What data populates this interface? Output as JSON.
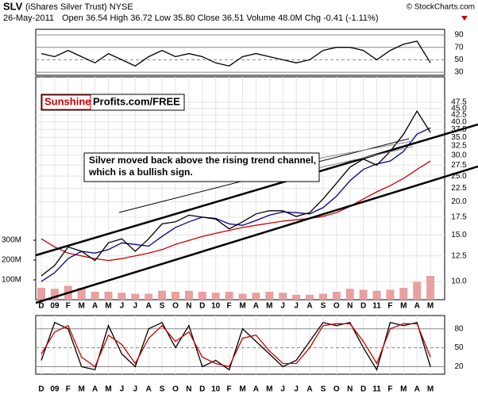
{
  "header": {
    "symbol": "SLV",
    "name": "(iShares Silver Trust) NYSE",
    "date": "26-May-2011",
    "quote": "Open 36.54  High 36.72  Low 35.80  Close 36.51  Volume 48.0M  Chg -0.41 (-1.11%)",
    "source": "© StockCharts.com"
  },
  "logo": {
    "red": "Sunshine",
    "black": "Profits.com/FREE"
  },
  "chart_data": [
    {
      "type": "line",
      "ylim": [
        25,
        99
      ],
      "yticks": [
        30,
        50,
        70,
        90
      ],
      "grid": true,
      "series": [
        {
          "color": "#000000",
          "values": [
            60,
            55,
            65,
            55,
            45,
            60,
            50,
            40,
            55,
            65,
            55,
            60,
            55,
            45,
            40,
            55,
            60,
            55,
            50,
            45,
            50,
            65,
            70,
            70,
            65,
            50,
            65,
            75,
            80,
            45
          ]
        }
      ]
    },
    {
      "type": "line",
      "log_scale": true,
      "ylim": [
        8.54,
        59.2
      ],
      "grid": true,
      "yticks": [
        {
          "value": 10,
          "label": "10.0"
        },
        {
          "value": 12.5,
          "label": "12.5"
        },
        {
          "value": 15,
          "label": "15.0"
        },
        {
          "value": 17.5,
          "label": "17.5"
        },
        {
          "value": 20,
          "label": "20.0"
        },
        {
          "value": 22.5,
          "label": "22.5"
        },
        {
          "value": 25,
          "label": "25.0"
        },
        {
          "value": 27.5,
          "label": "27.5"
        },
        {
          "value": 30,
          "label": "30.0"
        },
        {
          "value": 32.5,
          "label": "32.5"
        },
        {
          "value": 35,
          "label": "35.0"
        },
        {
          "value": 37.5,
          "label": "37.5"
        },
        {
          "value": 40,
          "label": "40.0"
        },
        {
          "value": 42.5,
          "label": "42.5"
        },
        {
          "value": 45,
          "label": "45.0"
        },
        {
          "value": 47.5,
          "label": "47.5"
        }
      ],
      "y2lim": [
        0,
        1124
      ],
      "y2ticks": [
        {
          "value": 100,
          "label": "100M"
        },
        {
          "value": 200,
          "label": "200M"
        },
        {
          "value": 300,
          "label": "300M"
        }
      ],
      "categories": [
        "D",
        "09",
        "F",
        "M",
        "A",
        "M",
        "J",
        "J",
        "A",
        "S",
        "O",
        "N",
        "D",
        "10",
        "F",
        "M",
        "A",
        "M",
        "J",
        "J",
        "A",
        "S",
        "O",
        "N",
        "D",
        "11",
        "F",
        "M",
        "A",
        "M"
      ],
      "annotation": [
        "Silver moved back above the rising trend channel,",
        "which is a bullish sign."
      ],
      "series": [
        {
          "type": "bar",
          "axis": "y2",
          "color": "#e8a0a0",
          "values": [
            60,
            55,
            70,
            60,
            40,
            40,
            35,
            30,
            30,
            45,
            40,
            45,
            40,
            35,
            40,
            30,
            35,
            40,
            35,
            25,
            25,
            30,
            40,
            55,
            50,
            45,
            50,
            60,
            90,
            120
          ]
        },
        {
          "color": "#cc0000",
          "values": [
            14.5,
            13.5,
            12.8,
            12.5,
            12.2,
            12,
            12.2,
            12.5,
            12.8,
            13.2,
            13.8,
            14.3,
            14.8,
            15.2,
            15.6,
            16,
            16.3,
            16.6,
            16.9,
            17.1,
            17.3,
            17.6,
            18.2,
            19.2,
            20.5,
            21.8,
            23,
            24.5,
            26.5,
            28.5
          ]
        },
        {
          "color": "#00008b",
          "values": [
            10,
            10.8,
            12.2,
            13,
            12.8,
            13.2,
            14,
            13.8,
            13.6,
            14.8,
            16,
            16.8,
            17.5,
            17.3,
            16.5,
            16.3,
            17,
            17.8,
            18.3,
            18.2,
            18,
            19,
            21,
            24,
            26.5,
            27.8,
            28.5,
            31,
            36,
            38
          ]
        },
        {
          "color": "#000000",
          "values": [
            10.5,
            11.5,
            13.5,
            13,
            12,
            14,
            14.5,
            13,
            14.5,
            16.5,
            16.8,
            17.8,
            17.5,
            17.2,
            15.8,
            16.8,
            18,
            18.5,
            18.5,
            17.6,
            18.2,
            20.5,
            23.5,
            27,
            29,
            27.5,
            31,
            36,
            44,
            36.51
          ]
        }
      ]
    },
    {
      "type": "line",
      "ylim": [
        8,
        101
      ],
      "yticks": [
        20,
        50,
        80
      ],
      "grid": true,
      "categories": [
        "D",
        "09",
        "F",
        "M",
        "A",
        "M",
        "J",
        "J",
        "A",
        "S",
        "O",
        "N",
        "D",
        "10",
        "F",
        "M",
        "A",
        "M",
        "J",
        "J",
        "A",
        "S",
        "O",
        "N",
        "D",
        "11",
        "F",
        "M",
        "A",
        "M"
      ],
      "series": [
        {
          "color": "#000000",
          "values": [
            30,
            90,
            80,
            20,
            15,
            85,
            40,
            20,
            80,
            90,
            50,
            85,
            20,
            30,
            15,
            80,
            60,
            40,
            20,
            30,
            60,
            90,
            85,
            90,
            50,
            15,
            90,
            85,
            90,
            20
          ]
        },
        {
          "color": "#cc0000",
          "values": [
            40,
            75,
            85,
            35,
            20,
            70,
            55,
            25,
            65,
            85,
            60,
            75,
            35,
            25,
            20,
            65,
            70,
            45,
            25,
            25,
            50,
            85,
            88,
            88,
            60,
            25,
            80,
            88,
            88,
            35
          ]
        }
      ]
    }
  ]
}
